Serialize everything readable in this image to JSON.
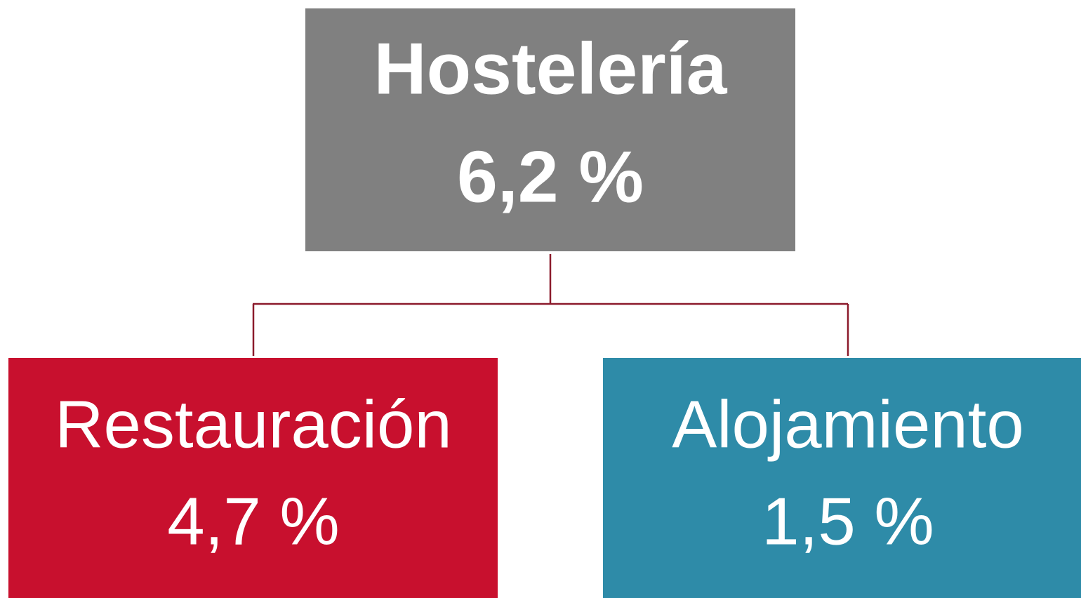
{
  "nodes": [
    {
      "label": "Hostelería",
      "value": "6,2 %"
    },
    {
      "label": "Restauración",
      "value": "4,7 %"
    },
    {
      "label": "Alojamiento",
      "value": "1,5 %"
    }
  ]
}
